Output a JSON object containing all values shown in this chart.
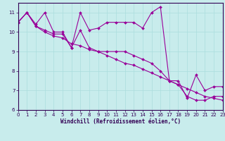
{
  "background_color": "#c8ecec",
  "line_color": "#990099",
  "grid_color": "#aadddd",
  "border_color": "#330055",
  "xlabel": "Windchill (Refroidissement éolien,°C)",
  "xlim": [
    0,
    23
  ],
  "ylim": [
    6,
    11.5
  ],
  "yticks": [
    6,
    7,
    8,
    9,
    10,
    11
  ],
  "xticks": [
    0,
    1,
    2,
    3,
    4,
    5,
    6,
    7,
    8,
    9,
    10,
    11,
    12,
    13,
    14,
    15,
    16,
    17,
    18,
    19,
    20,
    21,
    22,
    23
  ],
  "line1_x": [
    0,
    1,
    2,
    3,
    4,
    5,
    6,
    7,
    8,
    9,
    10,
    11,
    12,
    13,
    14,
    15,
    16,
    17,
    18,
    19,
    20,
    21,
    22,
    23
  ],
  "line1_y": [
    10.5,
    11.0,
    10.4,
    11.0,
    10.0,
    10.0,
    9.2,
    11.0,
    10.1,
    10.2,
    10.5,
    10.5,
    10.5,
    10.5,
    10.2,
    11.0,
    11.3,
    7.5,
    7.5,
    6.6,
    7.8,
    7.0,
    7.2,
    7.2
  ],
  "line2_x": [
    0,
    1,
    2,
    3,
    4,
    5,
    6,
    7,
    8,
    9,
    10,
    11,
    12,
    13,
    14,
    15,
    16,
    17,
    18,
    19,
    20,
    21,
    22,
    23
  ],
  "line2_y": [
    10.5,
    11.0,
    10.3,
    10.1,
    9.9,
    9.9,
    9.2,
    10.1,
    9.2,
    9.0,
    9.0,
    9.0,
    9.0,
    8.8,
    8.6,
    8.4,
    8.0,
    7.5,
    7.3,
    6.7,
    6.5,
    6.5,
    6.7,
    6.7
  ],
  "line3_x": [
    0,
    1,
    2,
    3,
    4,
    5,
    6,
    7,
    8,
    9,
    10,
    11,
    12,
    13,
    14,
    15,
    16,
    17,
    18,
    19,
    20,
    21,
    22,
    23
  ],
  "line3_y": [
    10.5,
    11.0,
    10.3,
    10.0,
    9.8,
    9.7,
    9.4,
    9.3,
    9.1,
    9.0,
    8.8,
    8.6,
    8.4,
    8.3,
    8.1,
    7.9,
    7.7,
    7.5,
    7.3,
    7.1,
    6.9,
    6.7,
    6.6,
    6.5
  ]
}
